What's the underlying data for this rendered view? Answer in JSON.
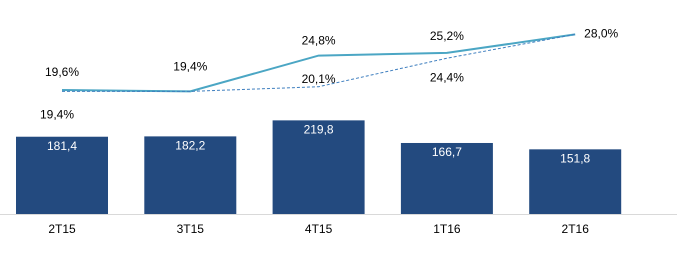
{
  "chart_data": {
    "type": "bar-line",
    "categories": [
      "2T15",
      "3T15",
      "4T15",
      "1T16",
      "2T16"
    ],
    "bars": {
      "color": "#234a7f",
      "values": [
        181.4,
        182.2,
        219.8,
        166.7,
        151.8
      ],
      "value_labels": [
        "181,4",
        "182,2",
        "219,8",
        "166,7",
        "151,8"
      ]
    },
    "series": [
      {
        "color": "#4ba6c4",
        "dash": false,
        "values": [
          19.6,
          19.4,
          24.8,
          25.2,
          28.0
        ],
        "value_labels": [
          "19,6%",
          "19,4%",
          "24,8%",
          "25,2%",
          "28,0%"
        ]
      },
      {
        "color": "#3f7fbf",
        "dash": true,
        "values": [
          19.4,
          19.4,
          20.1,
          24.4,
          28.0
        ],
        "value_labels": [
          "19,4%",
          null,
          "20,1%",
          "24,4%",
          null
        ]
      }
    ]
  }
}
